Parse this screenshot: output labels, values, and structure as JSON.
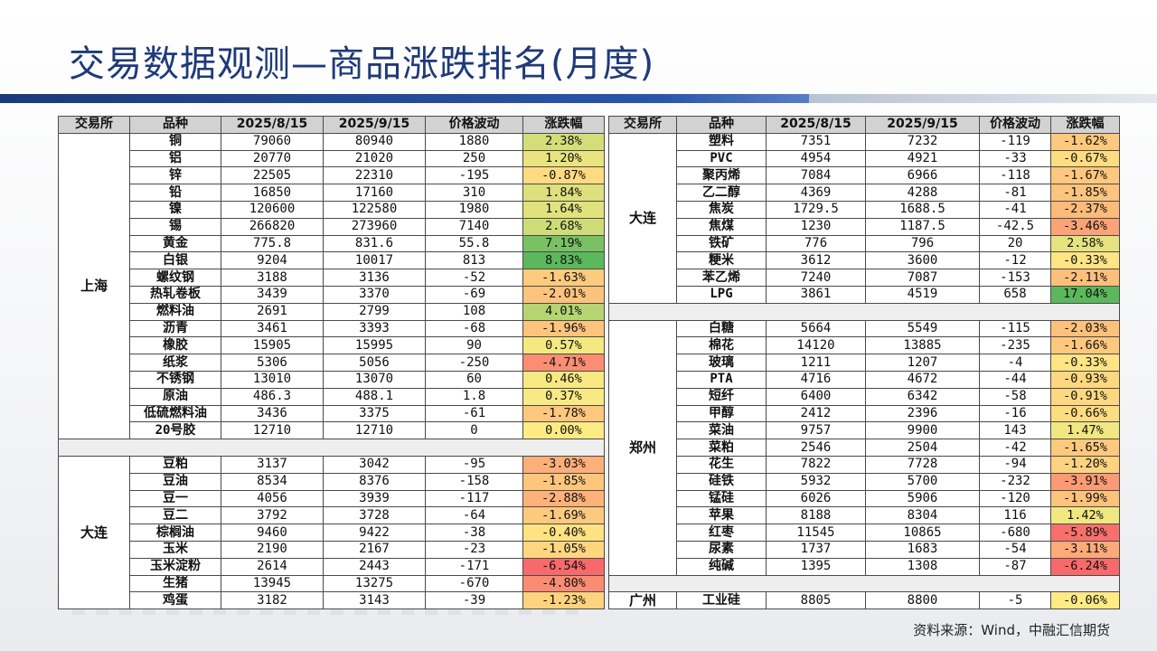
{
  "title": "交易数据观测—商品涨跌排名(月度)",
  "source": "资料来源：Wind，中融汇信期货",
  "headers": [
    "交易所",
    "品种",
    "2025/8/15",
    "2025/9/15",
    "价格波动",
    "涨跌幅"
  ],
  "colors": {
    "title": "#1f3a78",
    "positive_max": "#5cb85c",
    "mid": "#ffeb84",
    "negative_max": "#f8696b"
  },
  "left_groups": [
    {
      "exchange": "上海",
      "rows": [
        {
          "name": "铜",
          "p1": "79060",
          "p2": "80940",
          "chg": "1880",
          "pct": "2.38%",
          "v": 2.38
        },
        {
          "name": "铝",
          "p1": "20770",
          "p2": "21020",
          "chg": "250",
          "pct": "1.20%",
          "v": 1.2
        },
        {
          "name": "锌",
          "p1": "22505",
          "p2": "22310",
          "chg": "-195",
          "pct": "-0.87%",
          "v": -0.87
        },
        {
          "name": "铅",
          "p1": "16850",
          "p2": "17160",
          "chg": "310",
          "pct": "1.84%",
          "v": 1.84
        },
        {
          "name": "镍",
          "p1": "120600",
          "p2": "122580",
          "chg": "1980",
          "pct": "1.64%",
          "v": 1.64
        },
        {
          "name": "锡",
          "p1": "266820",
          "p2": "273960",
          "chg": "7140",
          "pct": "2.68%",
          "v": 2.68
        },
        {
          "name": "黄金",
          "p1": "775.8",
          "p2": "831.6",
          "chg": "55.8",
          "pct": "7.19%",
          "v": 7.19
        },
        {
          "name": "白银",
          "p1": "9204",
          "p2": "10017",
          "chg": "813",
          "pct": "8.83%",
          "v": 8.83
        },
        {
          "name": "螺纹钢",
          "p1": "3188",
          "p2": "3136",
          "chg": "-52",
          "pct": "-1.63%",
          "v": -1.63
        },
        {
          "name": "热轧卷板",
          "p1": "3439",
          "p2": "3370",
          "chg": "-69",
          "pct": "-2.01%",
          "v": -2.01
        },
        {
          "name": "燃料油",
          "p1": "2691",
          "p2": "2799",
          "chg": "108",
          "pct": "4.01%",
          "v": 4.01
        },
        {
          "name": "沥青",
          "p1": "3461",
          "p2": "3393",
          "chg": "-68",
          "pct": "-1.96%",
          "v": -1.96
        },
        {
          "name": "橡胶",
          "p1": "15905",
          "p2": "15995",
          "chg": "90",
          "pct": "0.57%",
          "v": 0.57
        },
        {
          "name": "纸浆",
          "p1": "5306",
          "p2": "5056",
          "chg": "-250",
          "pct": "-4.71%",
          "v": -4.71
        },
        {
          "name": "不锈钢",
          "p1": "13010",
          "p2": "13070",
          "chg": "60",
          "pct": "0.46%",
          "v": 0.46
        },
        {
          "name": "原油",
          "p1": "486.3",
          "p2": "488.1",
          "chg": "1.8",
          "pct": "0.37%",
          "v": 0.37
        },
        {
          "name": "低硫燃料油",
          "p1": "3436",
          "p2": "3375",
          "chg": "-61",
          "pct": "-1.78%",
          "v": -1.78
        },
        {
          "name": "20号胶",
          "p1": "12710",
          "p2": "12710",
          "chg": "0",
          "pct": "0.00%",
          "v": 0.0
        }
      ]
    },
    {
      "exchange": "大连",
      "rows": [
        {
          "name": "豆粕",
          "p1": "3137",
          "p2": "3042",
          "chg": "-95",
          "pct": "-3.03%",
          "v": -3.03
        },
        {
          "name": "豆油",
          "p1": "8534",
          "p2": "8376",
          "chg": "-158",
          "pct": "-1.85%",
          "v": -1.85
        },
        {
          "name": "豆一",
          "p1": "4056",
          "p2": "3939",
          "chg": "-117",
          "pct": "-2.88%",
          "v": -2.88
        },
        {
          "name": "豆二",
          "p1": "3792",
          "p2": "3728",
          "chg": "-64",
          "pct": "-1.69%",
          "v": -1.69
        },
        {
          "name": "棕榈油",
          "p1": "9460",
          "p2": "9422",
          "chg": "-38",
          "pct": "-0.40%",
          "v": -0.4
        },
        {
          "name": "玉米",
          "p1": "2190",
          "p2": "2167",
          "chg": "-23",
          "pct": "-1.05%",
          "v": -1.05
        },
        {
          "name": "玉米淀粉",
          "p1": "2614",
          "p2": "2443",
          "chg": "-171",
          "pct": "-6.54%",
          "v": -6.54
        },
        {
          "name": "生猪",
          "p1": "13945",
          "p2": "13275",
          "chg": "-670",
          "pct": "-4.80%",
          "v": -4.8
        },
        {
          "name": "鸡蛋",
          "p1": "3182",
          "p2": "3143",
          "chg": "-39",
          "pct": "-1.23%",
          "v": -1.23
        }
      ]
    }
  ],
  "right_groups": [
    {
      "exchange": "大连",
      "rows": [
        {
          "name": "塑料",
          "p1": "7351",
          "p2": "7232",
          "chg": "-119",
          "pct": "-1.62%",
          "v": -1.62
        },
        {
          "name": "PVC",
          "p1": "4954",
          "p2": "4921",
          "chg": "-33",
          "pct": "-0.67%",
          "v": -0.67
        },
        {
          "name": "聚丙烯",
          "p1": "7084",
          "p2": "6966",
          "chg": "-118",
          "pct": "-1.67%",
          "v": -1.67
        },
        {
          "name": "乙二醇",
          "p1": "4369",
          "p2": "4288",
          "chg": "-81",
          "pct": "-1.85%",
          "v": -1.85
        },
        {
          "name": "焦炭",
          "p1": "1729.5",
          "p2": "1688.5",
          "chg": "-41",
          "pct": "-2.37%",
          "v": -2.37
        },
        {
          "name": "焦煤",
          "p1": "1230",
          "p2": "1187.5",
          "chg": "-42.5",
          "pct": "-3.46%",
          "v": -3.46
        },
        {
          "name": "铁矿",
          "p1": "776",
          "p2": "796",
          "chg": "20",
          "pct": "2.58%",
          "v": 2.58
        },
        {
          "name": "粳米",
          "p1": "3612",
          "p2": "3600",
          "chg": "-12",
          "pct": "-0.33%",
          "v": -0.33
        },
        {
          "name": "苯乙烯",
          "p1": "7240",
          "p2": "7087",
          "chg": "-153",
          "pct": "-2.11%",
          "v": -2.11
        },
        {
          "name": "LPG",
          "p1": "3861",
          "p2": "4519",
          "chg": "658",
          "pct": "17.04%",
          "v": 17.04
        }
      ]
    },
    {
      "exchange": "郑州",
      "rows": [
        {
          "name": "白糖",
          "p1": "5664",
          "p2": "5549",
          "chg": "-115",
          "pct": "-2.03%",
          "v": -2.03
        },
        {
          "name": "棉花",
          "p1": "14120",
          "p2": "13885",
          "chg": "-235",
          "pct": "-1.66%",
          "v": -1.66
        },
        {
          "name": "玻璃",
          "p1": "1211",
          "p2": "1207",
          "chg": "-4",
          "pct": "-0.33%",
          "v": -0.33
        },
        {
          "name": "PTA",
          "p1": "4716",
          "p2": "4672",
          "chg": "-44",
          "pct": "-0.93%",
          "v": -0.93
        },
        {
          "name": "短纤",
          "p1": "6400",
          "p2": "6342",
          "chg": "-58",
          "pct": "-0.91%",
          "v": -0.91
        },
        {
          "name": "甲醇",
          "p1": "2412",
          "p2": "2396",
          "chg": "-16",
          "pct": "-0.66%",
          "v": -0.66
        },
        {
          "name": "菜油",
          "p1": "9757",
          "p2": "9900",
          "chg": "143",
          "pct": "1.47%",
          "v": 1.47
        },
        {
          "name": "菜粕",
          "p1": "2546",
          "p2": "2504",
          "chg": "-42",
          "pct": "-1.65%",
          "v": -1.65
        },
        {
          "name": "花生",
          "p1": "7822",
          "p2": "7728",
          "chg": "-94",
          "pct": "-1.20%",
          "v": -1.2
        },
        {
          "name": "硅铁",
          "p1": "5932",
          "p2": "5700",
          "chg": "-232",
          "pct": "-3.91%",
          "v": -3.91
        },
        {
          "name": "锰硅",
          "p1": "6026",
          "p2": "5906",
          "chg": "-120",
          "pct": "-1.99%",
          "v": -1.99
        },
        {
          "name": "苹果",
          "p1": "8188",
          "p2": "8304",
          "chg": "116",
          "pct": "1.42%",
          "v": 1.42
        },
        {
          "name": "红枣",
          "p1": "11545",
          "p2": "10865",
          "chg": "-680",
          "pct": "-5.89%",
          "v": -5.89
        },
        {
          "name": "尿素",
          "p1": "1737",
          "p2": "1683",
          "chg": "-54",
          "pct": "-3.11%",
          "v": -3.11
        },
        {
          "name": "纯碱",
          "p1": "1395",
          "p2": "1308",
          "chg": "-87",
          "pct": "-6.24%",
          "v": -6.24
        }
      ]
    },
    {
      "exchange": "广州",
      "rows": [
        {
          "name": "工业硅",
          "p1": "8805",
          "p2": "8800",
          "chg": "-5",
          "pct": "-0.06%",
          "v": -0.06
        }
      ]
    }
  ]
}
